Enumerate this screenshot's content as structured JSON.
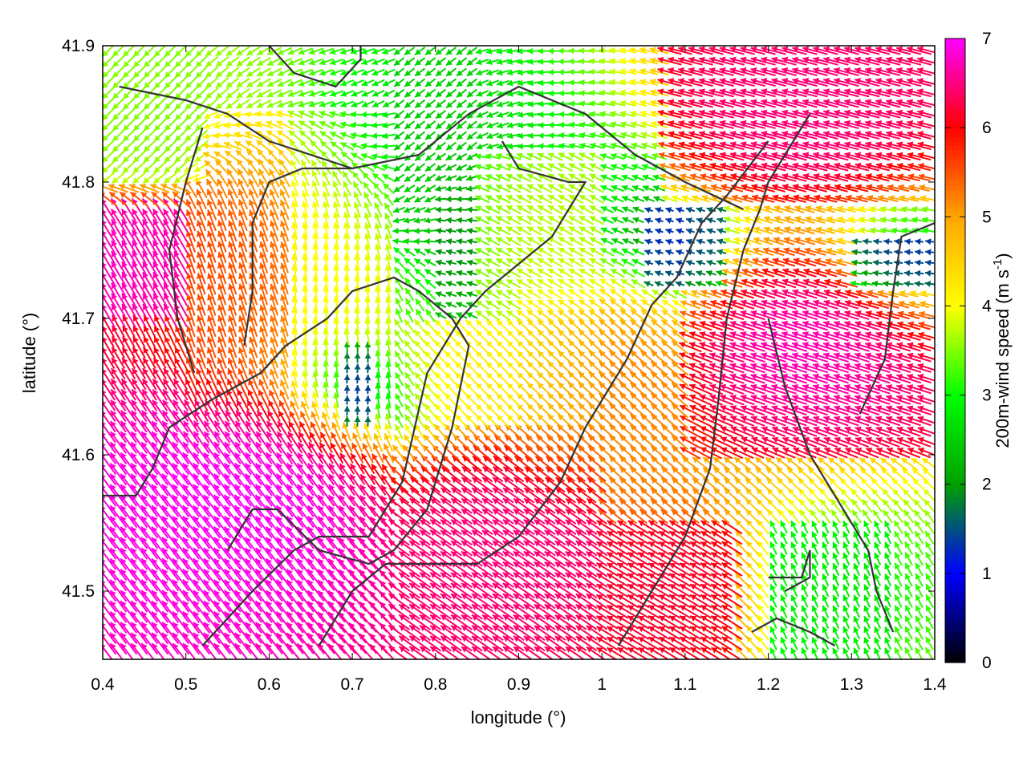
{
  "chart_data": {
    "type": "vector-field",
    "xlabel": "longitude (°)",
    "ylabel": "latitude (°)",
    "xlim": [
      0.4,
      1.4
    ],
    "ylim": [
      41.45,
      41.9
    ],
    "xticks": [
      "0.4",
      "0.5",
      "0.6",
      "0.7",
      "0.8",
      "0.9",
      "1",
      "1.1",
      "1.2",
      "1.3",
      "1.4"
    ],
    "yticks": [
      "41.5",
      "41.6",
      "41.7",
      "41.8",
      "41.9"
    ],
    "colorbar": {
      "label": "200m-wind speed (m s-1)",
      "label_main": "200m-wind speed (m s",
      "label_sup": "-1",
      "label_end": ")",
      "range": [
        0,
        7
      ],
      "ticks": [
        "0",
        "1",
        "2",
        "3",
        "4",
        "5",
        "6",
        "7"
      ],
      "colormap": [
        "#000000",
        "#0000ff",
        "#00a000",
        "#00ff00",
        "#ffff00",
        "#ffa500",
        "#ff0000",
        "#ff00ff"
      ]
    },
    "regions": [
      {
        "x": [
          0.4,
          0.75
        ],
        "y": [
          41.45,
          41.7
        ],
        "speed": 7.0,
        "u": -0.6,
        "v": 0.8
      },
      {
        "x": [
          0.4,
          0.5
        ],
        "y": [
          41.7,
          41.78
        ],
        "speed": 6.8,
        "u": -0.5,
        "v": 0.85
      },
      {
        "x": [
          0.75,
          1.0
        ],
        "y": [
          41.45,
          41.62
        ],
        "speed": 6.5,
        "u": -0.8,
        "v": 0.55
      },
      {
        "x": [
          1.1,
          1.4
        ],
        "y": [
          41.6,
          41.78
        ],
        "speed": 6.8,
        "u": -0.95,
        "v": 0.3
      },
      {
        "x": [
          1.08,
          1.4
        ],
        "y": [
          41.78,
          41.9
        ],
        "speed": 6.5,
        "u": -0.97,
        "v": 0.25
      },
      {
        "x": [
          0.5,
          0.62
        ],
        "y": [
          41.6,
          41.85
        ],
        "speed": 5.5,
        "u": -0.3,
        "v": 0.95
      },
      {
        "x": [
          0.9,
          1.1
        ],
        "y": [
          41.55,
          41.75
        ],
        "speed": 5.2,
        "u": -0.75,
        "v": 0.65
      },
      {
        "x": [
          0.62,
          0.75
        ],
        "y": [
          41.6,
          41.85
        ],
        "speed": 4.0,
        "u": -0.15,
        "v": 0.99
      },
      {
        "x": [
          0.4,
          0.52
        ],
        "y": [
          41.8,
          41.9
        ],
        "speed": 3.5,
        "u": -0.7,
        "v": -0.7
      },
      {
        "x": [
          0.75,
          0.85
        ],
        "y": [
          41.75,
          41.9
        ],
        "speed": 2.5,
        "u": -0.6,
        "v": -0.5
      },
      {
        "x": [
          0.8,
          0.85
        ],
        "y": [
          41.7,
          41.82
        ],
        "speed": 1.8,
        "u": -0.9,
        "v": 0.2
      },
      {
        "x": [
          0.85,
          1.0
        ],
        "y": [
          41.7,
          41.82
        ],
        "speed": 3.8,
        "u": -0.85,
        "v": 0.5
      },
      {
        "x": [
          0.69,
          0.73
        ],
        "y": [
          41.62,
          41.68
        ],
        "speed": 1.0,
        "u": 0.1,
        "v": 0.99
      },
      {
        "x": [
          1.05,
          1.15
        ],
        "y": [
          41.72,
          41.78
        ],
        "speed": 1.2,
        "u": -0.9,
        "v": 0.3
      },
      {
        "x": [
          1.3,
          1.4
        ],
        "y": [
          41.72,
          41.76
        ],
        "speed": 1.0,
        "u": -0.99,
        "v": 0.1
      },
      {
        "x": [
          1.16,
          1.35
        ],
        "y": [
          41.45,
          41.55
        ],
        "speed": 2.8,
        "u": -0.4,
        "v": 0.9
      },
      {
        "x": [
          0.75,
          1.0
        ],
        "y": [
          41.62,
          41.7
        ],
        "speed": 4.2,
        "u": -0.7,
        "v": 0.7
      },
      {
        "x": [
          1.0,
          1.2
        ],
        "y": [
          41.45,
          41.55
        ],
        "speed": 6.2,
        "u": -0.85,
        "v": 0.5
      }
    ],
    "contours": [
      [
        [
          0.4,
          41.57
        ],
        [
          0.44,
          41.57
        ],
        [
          0.46,
          41.59
        ],
        [
          0.48,
          41.62
        ],
        [
          0.53,
          41.64
        ],
        [
          0.59,
          41.66
        ],
        [
          0.62,
          41.68
        ],
        [
          0.67,
          41.7
        ],
        [
          0.7,
          41.72
        ],
        [
          0.75,
          41.73
        ],
        [
          0.78,
          41.72
        ],
        [
          0.82,
          41.7
        ],
        [
          0.84,
          41.68
        ],
        [
          0.82,
          41.62
        ],
        [
          0.79,
          41.56
        ],
        [
          0.75,
          41.53
        ],
        [
          0.72,
          41.52
        ],
        [
          0.66,
          41.53
        ],
        [
          0.61,
          41.56
        ],
        [
          0.58,
          41.56
        ],
        [
          0.55,
          41.53
        ]
      ],
      [
        [
          0.52,
          41.46
        ],
        [
          0.55,
          41.48
        ],
        [
          0.58,
          41.5
        ],
        [
          0.63,
          41.53
        ],
        [
          0.66,
          41.54
        ],
        [
          0.72,
          41.54
        ],
        [
          0.76,
          41.58
        ],
        [
          0.79,
          41.66
        ],
        [
          0.83,
          41.7
        ],
        [
          0.86,
          41.72
        ],
        [
          0.9,
          41.74
        ],
        [
          0.94,
          41.76
        ],
        [
          0.98,
          41.8
        ],
        [
          0.96,
          41.8
        ],
        [
          0.9,
          41.81
        ],
        [
          0.88,
          41.83
        ]
      ],
      [
        [
          0.66,
          41.46
        ],
        [
          0.7,
          41.5
        ],
        [
          0.74,
          41.52
        ],
        [
          0.8,
          41.52
        ],
        [
          0.85,
          41.52
        ],
        [
          0.9,
          41.54
        ],
        [
          0.95,
          41.58
        ],
        [
          0.98,
          41.62
        ],
        [
          1.03,
          41.67
        ],
        [
          1.06,
          41.71
        ],
        [
          1.09,
          41.73
        ],
        [
          1.12,
          41.77
        ],
        [
          1.15,
          41.79
        ],
        [
          1.2,
          41.83
        ]
      ],
      [
        [
          1.02,
          41.46
        ],
        [
          1.06,
          41.5
        ],
        [
          1.1,
          41.54
        ],
        [
          1.13,
          41.59
        ],
        [
          1.14,
          41.64
        ],
        [
          1.15,
          41.7
        ],
        [
          1.17,
          41.75
        ],
        [
          1.19,
          41.78
        ],
        [
          1.2,
          41.8
        ],
        [
          1.25,
          41.85
        ]
      ],
      [
        [
          0.42,
          41.87
        ],
        [
          0.5,
          41.86
        ],
        [
          0.55,
          41.85
        ],
        [
          0.6,
          41.83
        ],
        [
          0.65,
          41.82
        ],
        [
          0.7,
          41.81
        ],
        [
          0.78,
          41.82
        ],
        [
          0.84,
          41.85
        ],
        [
          0.9,
          41.87
        ],
        [
          0.98,
          41.85
        ],
        [
          1.04,
          41.82
        ],
        [
          1.1,
          41.8
        ],
        [
          1.17,
          41.78
        ]
      ],
      [
        [
          0.6,
          41.9
        ],
        [
          0.63,
          41.88
        ],
        [
          0.68,
          41.87
        ],
        [
          0.71,
          41.89
        ],
        [
          0.71,
          41.9
        ]
      ],
      [
        [
          0.57,
          41.68
        ],
        [
          0.58,
          41.72
        ],
        [
          0.58,
          41.77
        ],
        [
          0.6,
          41.8
        ],
        [
          0.64,
          41.81
        ],
        [
          0.7,
          41.81
        ]
      ],
      [
        [
          0.51,
          41.66
        ],
        [
          0.49,
          41.7
        ],
        [
          0.48,
          41.75
        ],
        [
          0.5,
          41.8
        ],
        [
          0.52,
          41.84
        ]
      ],
      [
        [
          1.2,
          41.7
        ],
        [
          1.22,
          41.65
        ],
        [
          1.25,
          41.6
        ],
        [
          1.28,
          41.57
        ],
        [
          1.3,
          41.55
        ],
        [
          1.32,
          41.53
        ],
        [
          1.33,
          41.5
        ],
        [
          1.35,
          41.47
        ]
      ],
      [
        [
          1.18,
          41.47
        ],
        [
          1.21,
          41.48
        ],
        [
          1.25,
          41.47
        ],
        [
          1.28,
          41.46
        ]
      ],
      [
        [
          1.2,
          41.51
        ],
        [
          1.24,
          41.51
        ],
        [
          1.25,
          41.53
        ],
        [
          1.25,
          41.51
        ],
        [
          1.22,
          41.5
        ]
      ],
      [
        [
          1.31,
          41.63
        ],
        [
          1.34,
          41.67
        ],
        [
          1.35,
          41.72
        ],
        [
          1.36,
          41.76
        ],
        [
          1.4,
          41.77
        ]
      ]
    ]
  }
}
